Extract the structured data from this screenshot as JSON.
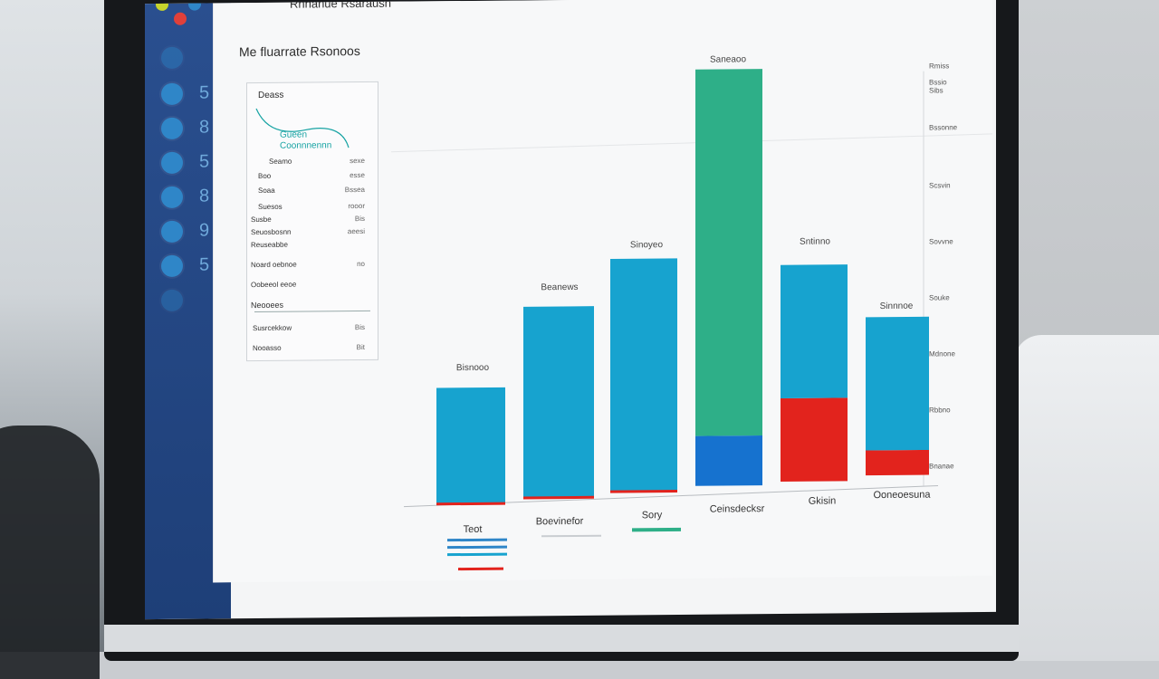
{
  "window": {
    "title": "Rnnanue Rsaraush"
  },
  "sidebar": {
    "items": [
      {
        "label": "5"
      },
      {
        "label": "8"
      },
      {
        "label": "5"
      },
      {
        "label": "8"
      },
      {
        "label": "9"
      },
      {
        "label": "5"
      }
    ]
  },
  "page": {
    "title": "Me fluarrate Rsonoos"
  },
  "panel": {
    "title": "Deass",
    "subtitle1": "Gueen",
    "subtitle2": "Coonnnennn",
    "rows": [
      {
        "label": "Seamo",
        "value": "sexe"
      },
      {
        "label": "Boo",
        "value": "esse"
      },
      {
        "label": "Soaa",
        "value": "Bssea"
      },
      {
        "label": "Suesos",
        "value": "rooor"
      },
      {
        "label": "Susbe",
        "value": "Bis"
      },
      {
        "label": "Seuosbosnn",
        "value": "aeesi"
      },
      {
        "label": "Reuseabbe",
        "value": ""
      },
      {
        "label": "Noard oebnoe",
        "value": "no"
      },
      {
        "label": "Oobeeol eeoe",
        "value": ""
      },
      {
        "label": "Neooees",
        "value": ""
      },
      {
        "label": "Susrcekkow",
        "value": "Bis"
      },
      {
        "label": "Nooasso",
        "value": "Bit"
      }
    ]
  },
  "chart_data": {
    "type": "bar",
    "categories": [
      "Teot",
      "Boevinefor",
      "Sory",
      "Ceinsdecksr",
      "Gkisin",
      "Ooneoesuna"
    ],
    "value_labels": [
      "Bisnooo",
      "Beanews",
      "Sinoyeo",
      "Saneaoo",
      "Sntinno",
      "Sinnnoe"
    ],
    "ylim": [
      0,
      100
    ],
    "y_ticks": [
      "Rmiss",
      "Bssio Sibs",
      "Bssonne",
      "Scsvin",
      "Sovvne",
      "Souke",
      "Mdnone",
      "Rbbno",
      "Bnanae"
    ],
    "series": [
      {
        "values": [
          0,
          0,
          0,
          12,
          20,
          6
        ]
      },
      {
        "values": [
          28,
          46,
          56,
          0,
          32,
          32
        ]
      },
      {
        "values": [
          0,
          0,
          0,
          88,
          0,
          0
        ]
      }
    ],
    "colors": [
      "#e2231d",
      "#17a3cf",
      "#2eaf88"
    ],
    "overlay_color": "#1672cf"
  }
}
